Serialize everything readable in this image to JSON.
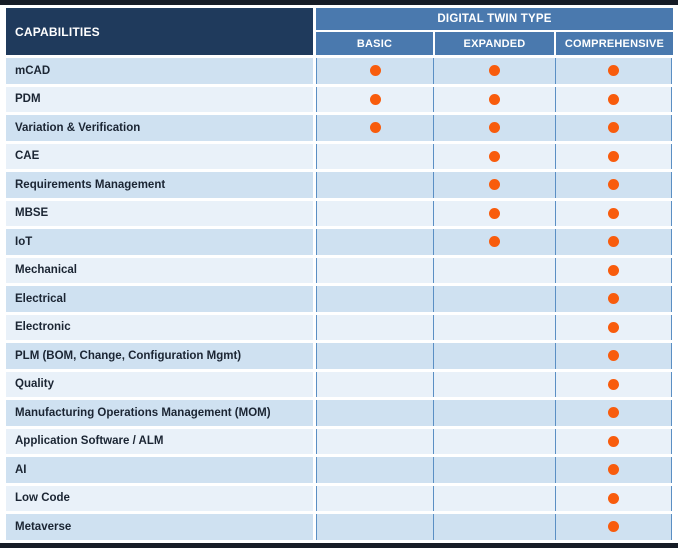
{
  "table": {
    "capabilities_label": "CAPABILITIES",
    "group_label": "DIGITAL TWIN TYPE",
    "columns": [
      "BASIC",
      "EXPANDED",
      "COMPREHENSIVE"
    ],
    "rows": [
      {
        "label": "mCAD",
        "dots": [
          true,
          true,
          true
        ]
      },
      {
        "label": "PDM",
        "dots": [
          true,
          true,
          true
        ]
      },
      {
        "label": "Variation & Verification",
        "dots": [
          true,
          true,
          true
        ]
      },
      {
        "label": "CAE",
        "dots": [
          false,
          true,
          true
        ]
      },
      {
        "label": "Requirements Management",
        "dots": [
          false,
          true,
          true
        ]
      },
      {
        "label": "MBSE",
        "dots": [
          false,
          true,
          true
        ]
      },
      {
        "label": "IoT",
        "dots": [
          false,
          true,
          true
        ]
      },
      {
        "label": "Mechanical",
        "dots": [
          false,
          false,
          true
        ]
      },
      {
        "label": "Electrical",
        "dots": [
          false,
          false,
          true
        ]
      },
      {
        "label": "Electronic",
        "dots": [
          false,
          false,
          true
        ]
      },
      {
        "label": "PLM (BOM, Change, Configuration Mgmt)",
        "dots": [
          false,
          false,
          true
        ]
      },
      {
        "label": "Quality",
        "dots": [
          false,
          false,
          true
        ]
      },
      {
        "label": "Manufacturing Operations Management (MOM)",
        "dots": [
          false,
          false,
          true
        ]
      },
      {
        "label": "Application Software / ALM",
        "dots": [
          false,
          false,
          true
        ]
      },
      {
        "label": "AI",
        "dots": [
          false,
          false,
          true
        ]
      },
      {
        "label": "Low Code",
        "dots": [
          false,
          false,
          true
        ]
      },
      {
        "label": "Metaverse",
        "dots": [
          false,
          false,
          true
        ]
      }
    ]
  },
  "colors": {
    "header_navy": "#1F3A5C",
    "header_blue": "#4A79AE",
    "row_dark": "#CFE1F1",
    "row_light": "#E9F1F9",
    "grid_blue": "#5B8FC4",
    "dot_orange": "#F85C0D",
    "bar_dark": "#161C26",
    "label_text": "#1B2533"
  },
  "chart_data": {
    "type": "table",
    "title": "DIGITAL TWIN TYPE",
    "row_header": "CAPABILITIES",
    "columns": [
      "BASIC",
      "EXPANDED",
      "COMPREHENSIVE"
    ],
    "rows": [
      "mCAD",
      "PDM",
      "Variation & Verification",
      "CAE",
      "Requirements Management",
      "MBSE",
      "IoT",
      "Mechanical",
      "Electrical",
      "Electronic",
      "PLM (BOM, Change, Configuration Mgmt)",
      "Quality",
      "Manufacturing Operations Management (MOM)",
      "Application Software / ALM",
      "AI",
      "Low Code",
      "Metaverse"
    ],
    "matrix": [
      [
        1,
        1,
        1
      ],
      [
        1,
        1,
        1
      ],
      [
        1,
        1,
        1
      ],
      [
        0,
        1,
        1
      ],
      [
        0,
        1,
        1
      ],
      [
        0,
        1,
        1
      ],
      [
        0,
        1,
        1
      ],
      [
        0,
        0,
        1
      ],
      [
        0,
        0,
        1
      ],
      [
        0,
        0,
        1
      ],
      [
        0,
        0,
        1
      ],
      [
        0,
        0,
        1
      ],
      [
        0,
        0,
        1
      ],
      [
        0,
        0,
        1
      ],
      [
        0,
        0,
        1
      ],
      [
        0,
        0,
        1
      ],
      [
        0,
        0,
        1
      ]
    ],
    "marker": "orange-dot"
  }
}
